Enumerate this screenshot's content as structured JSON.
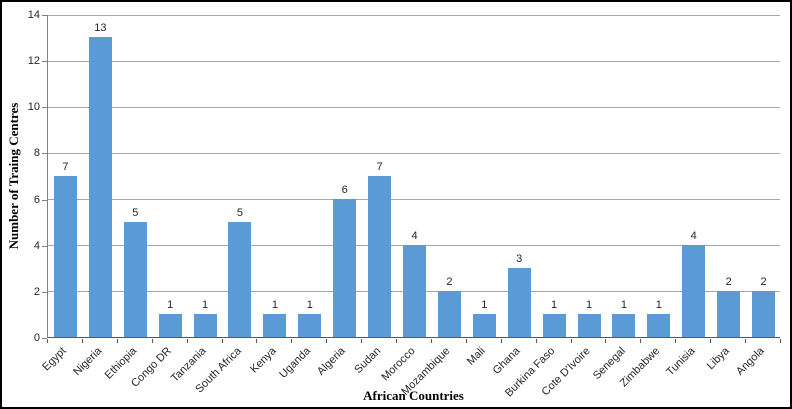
{
  "chart_data": {
    "type": "bar",
    "title": "",
    "xlabel": "African Countries",
    "ylabel": "Number of Traing Centres",
    "categories": [
      "Egypt",
      "Nigeria",
      "Ethiopia",
      "Congo DR",
      "Tanzania",
      "South Africa",
      "Kenya",
      "Uganda",
      "Algeria",
      "Sudan",
      "Morocco",
      "Mozambique",
      "Mali",
      "Ghana",
      "Burkina Faso",
      "Cote D'Ivoire",
      "Senegal",
      "Zimbabwe",
      "Tunisia",
      "Libya",
      "Angola"
    ],
    "values": [
      7,
      13,
      5,
      1,
      1,
      5,
      1,
      1,
      6,
      7,
      4,
      2,
      1,
      3,
      1,
      1,
      1,
      1,
      4,
      2,
      2
    ],
    "ylim": [
      0,
      14
    ],
    "yticks": [
      0,
      2,
      4,
      6,
      8,
      10,
      12,
      14
    ],
    "grid": true,
    "data_labels": true,
    "legend": "none",
    "bar_color": "#5B9BD5",
    "gridline_color": "#A6A6A6",
    "axis_color": "#595959",
    "text_color": "#262626",
    "frame_border_color": "#000000"
  }
}
